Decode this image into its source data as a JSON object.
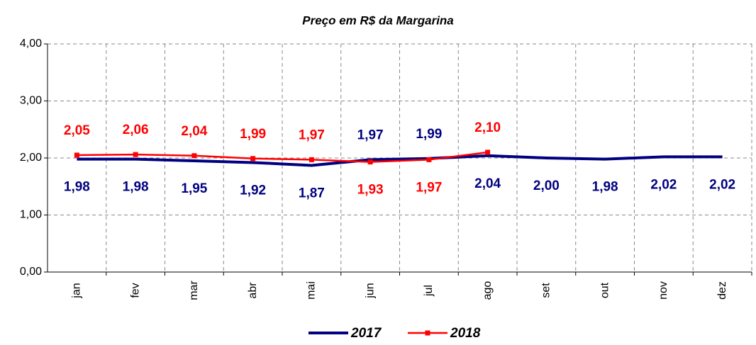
{
  "chart_data": {
    "type": "line",
    "title": "Preço em R$ da Margarina",
    "categories": [
      "jan",
      "fev",
      "mar",
      "abr",
      "mai",
      "jun",
      "jul",
      "ago",
      "set",
      "out",
      "nov",
      "dez"
    ],
    "series": [
      {
        "name": "2017",
        "color": "#000080",
        "values": [
          1.98,
          1.98,
          1.95,
          1.92,
          1.87,
          1.97,
          1.99,
          2.04,
          2.0,
          1.98,
          2.02,
          2.02
        ],
        "value_labels": [
          "1,98",
          "1,98",
          "1,95",
          "1,92",
          "1,87",
          "1,97",
          "1,99",
          "2,04",
          "2,00",
          "1,98",
          "2,02",
          "2,02"
        ]
      },
      {
        "name": "2018",
        "color": "#ff0000",
        "values": [
          2.05,
          2.06,
          2.04,
          1.99,
          1.97,
          1.93,
          1.97,
          2.1,
          null,
          null,
          null,
          null
        ],
        "value_labels": [
          "2,05",
          "2,06",
          "2,04",
          "1,99",
          "1,97",
          "1,93",
          "1,97",
          "2,10",
          null,
          null,
          null,
          null
        ]
      }
    ],
    "ylim": [
      0,
      4
    ],
    "yticks": [
      {
        "value": 0,
        "label": "0,00"
      },
      {
        "value": 1,
        "label": "1,00"
      },
      {
        "value": 2,
        "label": "2,00"
      },
      {
        "value": 3,
        "label": "3,00"
      },
      {
        "value": 4,
        "label": "4,00"
      }
    ],
    "grid": true,
    "legend": "bottom"
  }
}
